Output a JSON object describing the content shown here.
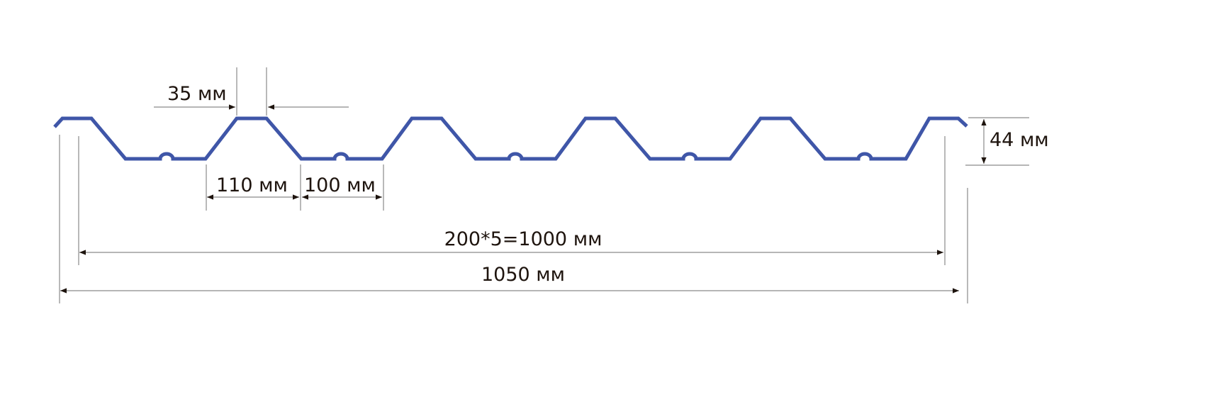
{
  "diagram": {
    "profile_color": "#3f56a8",
    "dimension_color": "#8a8a8a",
    "arrow_color": "#1e140e",
    "labels": {
      "top_flat": "35 мм",
      "rib_base": "110 мм",
      "valley": "100 мм",
      "height": "44 мм",
      "effective_width": "200*5=1000 мм",
      "total_width": "1050 мм"
    }
  }
}
